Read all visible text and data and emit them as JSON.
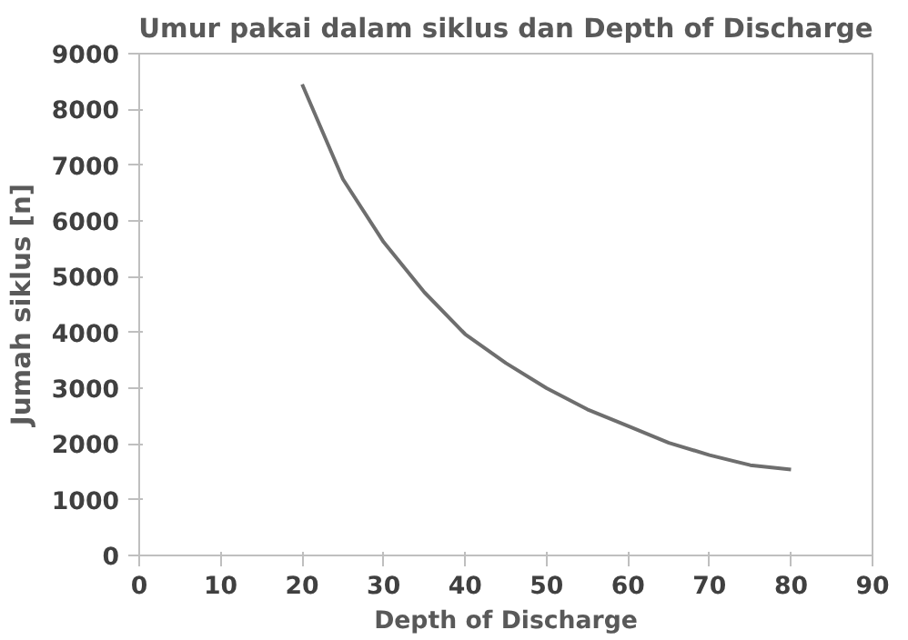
{
  "chart_data": {
    "type": "line",
    "title": "Umur pakai dalam siklus dan Depth of Discharge",
    "xlabel": "Depth of Discharge",
    "ylabel": "Jumah siklus [n]",
    "x": [
      20,
      25,
      30,
      35,
      40,
      45,
      50,
      55,
      60,
      65,
      70,
      75,
      80
    ],
    "series": [
      {
        "color": "#6e6e6e",
        "values": [
          8450,
          6750,
          5620,
          4720,
          3970,
          3450,
          3000,
          2620,
          2320,
          2020,
          1800,
          1620,
          1540
        ]
      }
    ],
    "xlim": [
      0,
      90
    ],
    "xticks": [
      0,
      10,
      20,
      30,
      40,
      50,
      60,
      70,
      80,
      90
    ],
    "ylim": [
      0,
      9000
    ],
    "yticks": [
      0,
      1000,
      2000,
      3000,
      4000,
      5000,
      6000,
      7000,
      8000,
      9000
    ],
    "grid": false,
    "marker": "none",
    "line_style": "solid"
  }
}
